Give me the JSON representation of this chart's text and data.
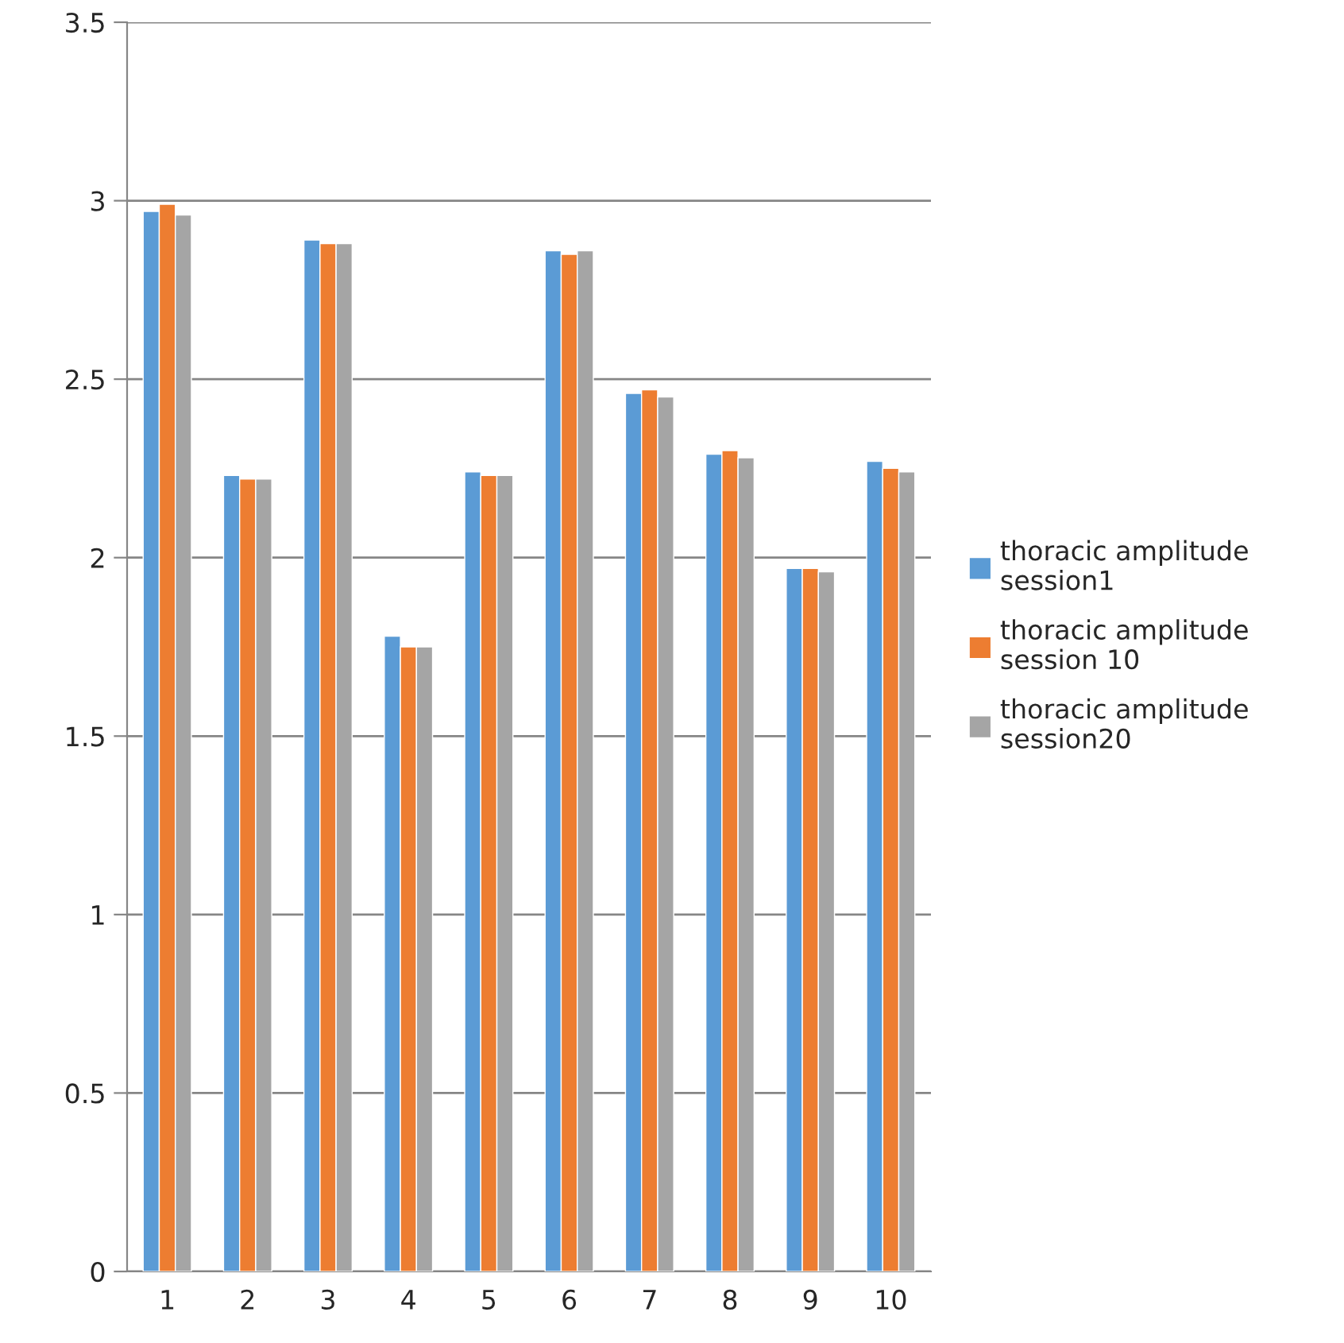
{
  "chart_data": {
    "type": "bar",
    "categories": [
      "1",
      "2",
      "3",
      "4",
      "5",
      "6",
      "7",
      "8",
      "9",
      "10"
    ],
    "series": [
      {
        "name": "thoracic amplitude session1",
        "color": "#5b9bd5",
        "values": [
          2.97,
          2.23,
          2.89,
          1.78,
          2.24,
          2.86,
          2.46,
          2.29,
          1.97,
          2.27
        ]
      },
      {
        "name": "thoracic amplitude session 10",
        "color": "#ed7d31",
        "values": [
          2.99,
          2.22,
          2.88,
          1.75,
          2.23,
          2.85,
          2.47,
          2.3,
          1.97,
          2.25
        ]
      },
      {
        "name": "thoracic amplitude session20",
        "color": "#a5a5a5",
        "values": [
          2.96,
          2.22,
          2.88,
          1.75,
          2.23,
          2.86,
          2.45,
          2.28,
          1.96,
          2.24
        ]
      }
    ],
    "ylim": [
      0,
      3.5
    ],
    "yticks": [
      0,
      0.5,
      1,
      1.5,
      2,
      2.5,
      3,
      3.5
    ],
    "grid": "y",
    "legend": "right"
  }
}
